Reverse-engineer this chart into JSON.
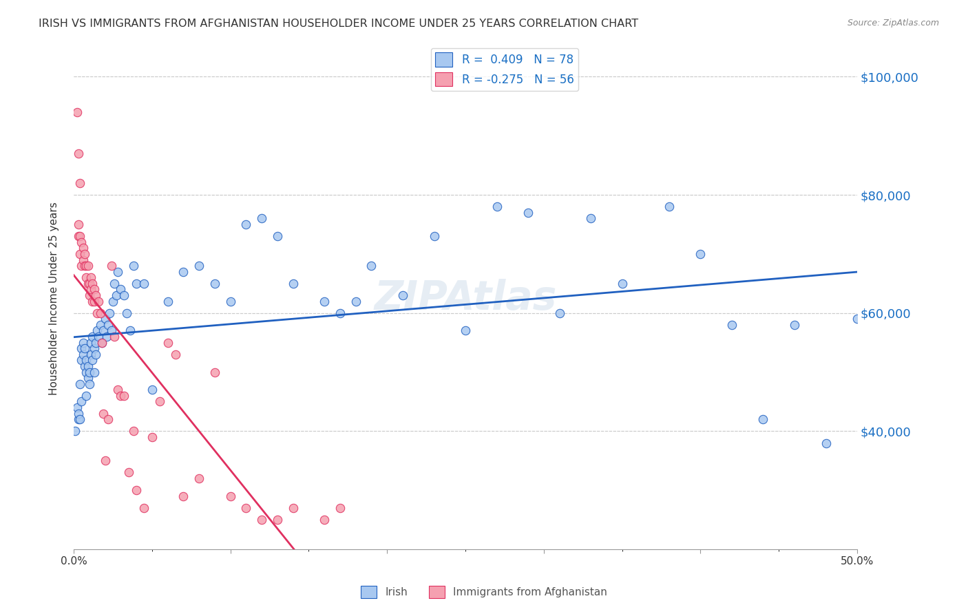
{
  "title": "IRISH VS IMMIGRANTS FROM AFGHANISTAN HOUSEHOLDER INCOME UNDER 25 YEARS CORRELATION CHART",
  "source": "Source: ZipAtlas.com",
  "xlabel": "",
  "ylabel": "Householder Income Under 25 years",
  "watermark": "ZIPAtlas",
  "xlim": [
    0.0,
    0.5
  ],
  "ylim": [
    20000,
    105000
  ],
  "xticks": [
    0.0,
    0.1,
    0.2,
    0.3,
    0.4,
    0.5
  ],
  "xticklabels": [
    "0.0%",
    "",
    "",
    "",
    "",
    "50.0%"
  ],
  "ytick_positions": [
    40000,
    60000,
    80000,
    100000
  ],
  "ytick_labels": [
    "$40,000",
    "$60,000",
    "$80,000",
    "$100,000"
  ],
  "irish_color": "#a8c8f0",
  "afghan_color": "#f5a0b0",
  "irish_line_color": "#2060c0",
  "afghan_line_color": "#e03060",
  "irish_line_ext_color": "#b0c8e8",
  "legend_irish_r": "0.409",
  "legend_irish_n": "78",
  "legend_afghan_r": "-0.275",
  "legend_afghan_n": "56",
  "irish_scatter_x": [
    0.003,
    0.004,
    0.005,
    0.005,
    0.006,
    0.006,
    0.007,
    0.007,
    0.008,
    0.008,
    0.009,
    0.009,
    0.01,
    0.01,
    0.011,
    0.011,
    0.012,
    0.012,
    0.013,
    0.013,
    0.014,
    0.014,
    0.015,
    0.016,
    0.017,
    0.018,
    0.019,
    0.02,
    0.021,
    0.022,
    0.023,
    0.024,
    0.025,
    0.026,
    0.027,
    0.028,
    0.03,
    0.032,
    0.034,
    0.036,
    0.038,
    0.04,
    0.045,
    0.05,
    0.06,
    0.07,
    0.08,
    0.09,
    0.1,
    0.11,
    0.12,
    0.13,
    0.14,
    0.16,
    0.17,
    0.18,
    0.19,
    0.21,
    0.23,
    0.25,
    0.27,
    0.29,
    0.31,
    0.33,
    0.35,
    0.38,
    0.4,
    0.42,
    0.44,
    0.46,
    0.48,
    0.5,
    0.001,
    0.002,
    0.003,
    0.004,
    0.005,
    0.008
  ],
  "irish_scatter_y": [
    42000,
    48000,
    52000,
    54000,
    55000,
    53000,
    54000,
    51000,
    52000,
    50000,
    49000,
    51000,
    50000,
    48000,
    53000,
    55000,
    52000,
    56000,
    54000,
    50000,
    53000,
    55000,
    57000,
    56000,
    58000,
    55000,
    57000,
    59000,
    56000,
    58000,
    60000,
    57000,
    62000,
    65000,
    63000,
    67000,
    64000,
    63000,
    60000,
    57000,
    68000,
    65000,
    65000,
    47000,
    62000,
    67000,
    68000,
    65000,
    62000,
    75000,
    76000,
    73000,
    65000,
    62000,
    60000,
    62000,
    68000,
    63000,
    73000,
    57000,
    78000,
    77000,
    60000,
    76000,
    65000,
    78000,
    70000,
    58000,
    42000,
    58000,
    38000,
    59000,
    40000,
    44000,
    43000,
    42000,
    45000,
    46000
  ],
  "afghan_scatter_x": [
    0.002,
    0.003,
    0.003,
    0.004,
    0.004,
    0.005,
    0.005,
    0.006,
    0.006,
    0.007,
    0.007,
    0.008,
    0.008,
    0.009,
    0.009,
    0.01,
    0.01,
    0.011,
    0.011,
    0.012,
    0.012,
    0.013,
    0.013,
    0.014,
    0.015,
    0.016,
    0.017,
    0.018,
    0.019,
    0.02,
    0.022,
    0.024,
    0.026,
    0.028,
    0.03,
    0.032,
    0.035,
    0.038,
    0.04,
    0.045,
    0.05,
    0.055,
    0.06,
    0.065,
    0.07,
    0.08,
    0.09,
    0.1,
    0.11,
    0.12,
    0.13,
    0.14,
    0.16,
    0.17,
    0.003,
    0.004
  ],
  "afghan_scatter_y": [
    94000,
    75000,
    73000,
    73000,
    70000,
    72000,
    68000,
    71000,
    69000,
    70000,
    68000,
    66000,
    68000,
    65000,
    68000,
    65000,
    63000,
    64000,
    66000,
    62000,
    65000,
    64000,
    62000,
    63000,
    60000,
    62000,
    60000,
    55000,
    43000,
    35000,
    42000,
    68000,
    56000,
    47000,
    46000,
    46000,
    33000,
    40000,
    30000,
    27000,
    39000,
    45000,
    55000,
    53000,
    29000,
    32000,
    50000,
    29000,
    27000,
    25000,
    25000,
    27000,
    25000,
    27000,
    87000,
    82000
  ]
}
